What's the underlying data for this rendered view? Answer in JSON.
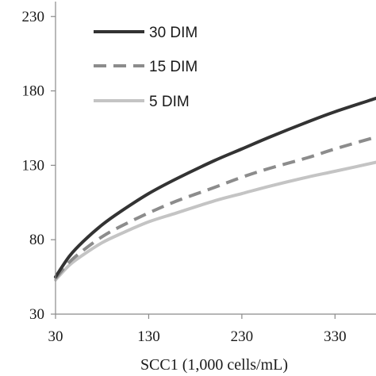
{
  "chart_data": {
    "type": "line",
    "title": "",
    "xlabel": "SCC1 (1,000 cells/mL)",
    "ylabel": "",
    "xlim": [
      30,
      374
    ],
    "ylim": [
      30,
      240
    ],
    "x_ticks": [
      30,
      130,
      230,
      330
    ],
    "y_ticks": [
      30,
      80,
      130,
      180,
      230
    ],
    "grid": false,
    "legend_position": "top-left",
    "x": [
      30,
      45,
      60,
      80,
      100,
      130,
      160,
      200,
      230,
      260,
      300,
      330,
      374
    ],
    "series": [
      {
        "name": "30 DIM",
        "color": "#333333",
        "style": "solid",
        "values": [
          55,
          69,
          79,
          90,
          99,
          111,
          121,
          133,
          141,
          149,
          159,
          166,
          175
        ]
      },
      {
        "name": "15 DIM",
        "color": "#8c8c8c",
        "style": "dashed",
        "values": [
          54,
          65,
          73,
          82,
          89,
          98,
          106,
          115,
          122,
          128,
          135,
          141,
          149
        ]
      },
      {
        "name": "5 DIM",
        "color": "#c4c4c4",
        "style": "solid",
        "values": [
          53,
          63,
          70,
          78,
          84,
          92,
          98,
          106,
          111,
          116,
          122,
          126,
          132
        ]
      }
    ]
  }
}
